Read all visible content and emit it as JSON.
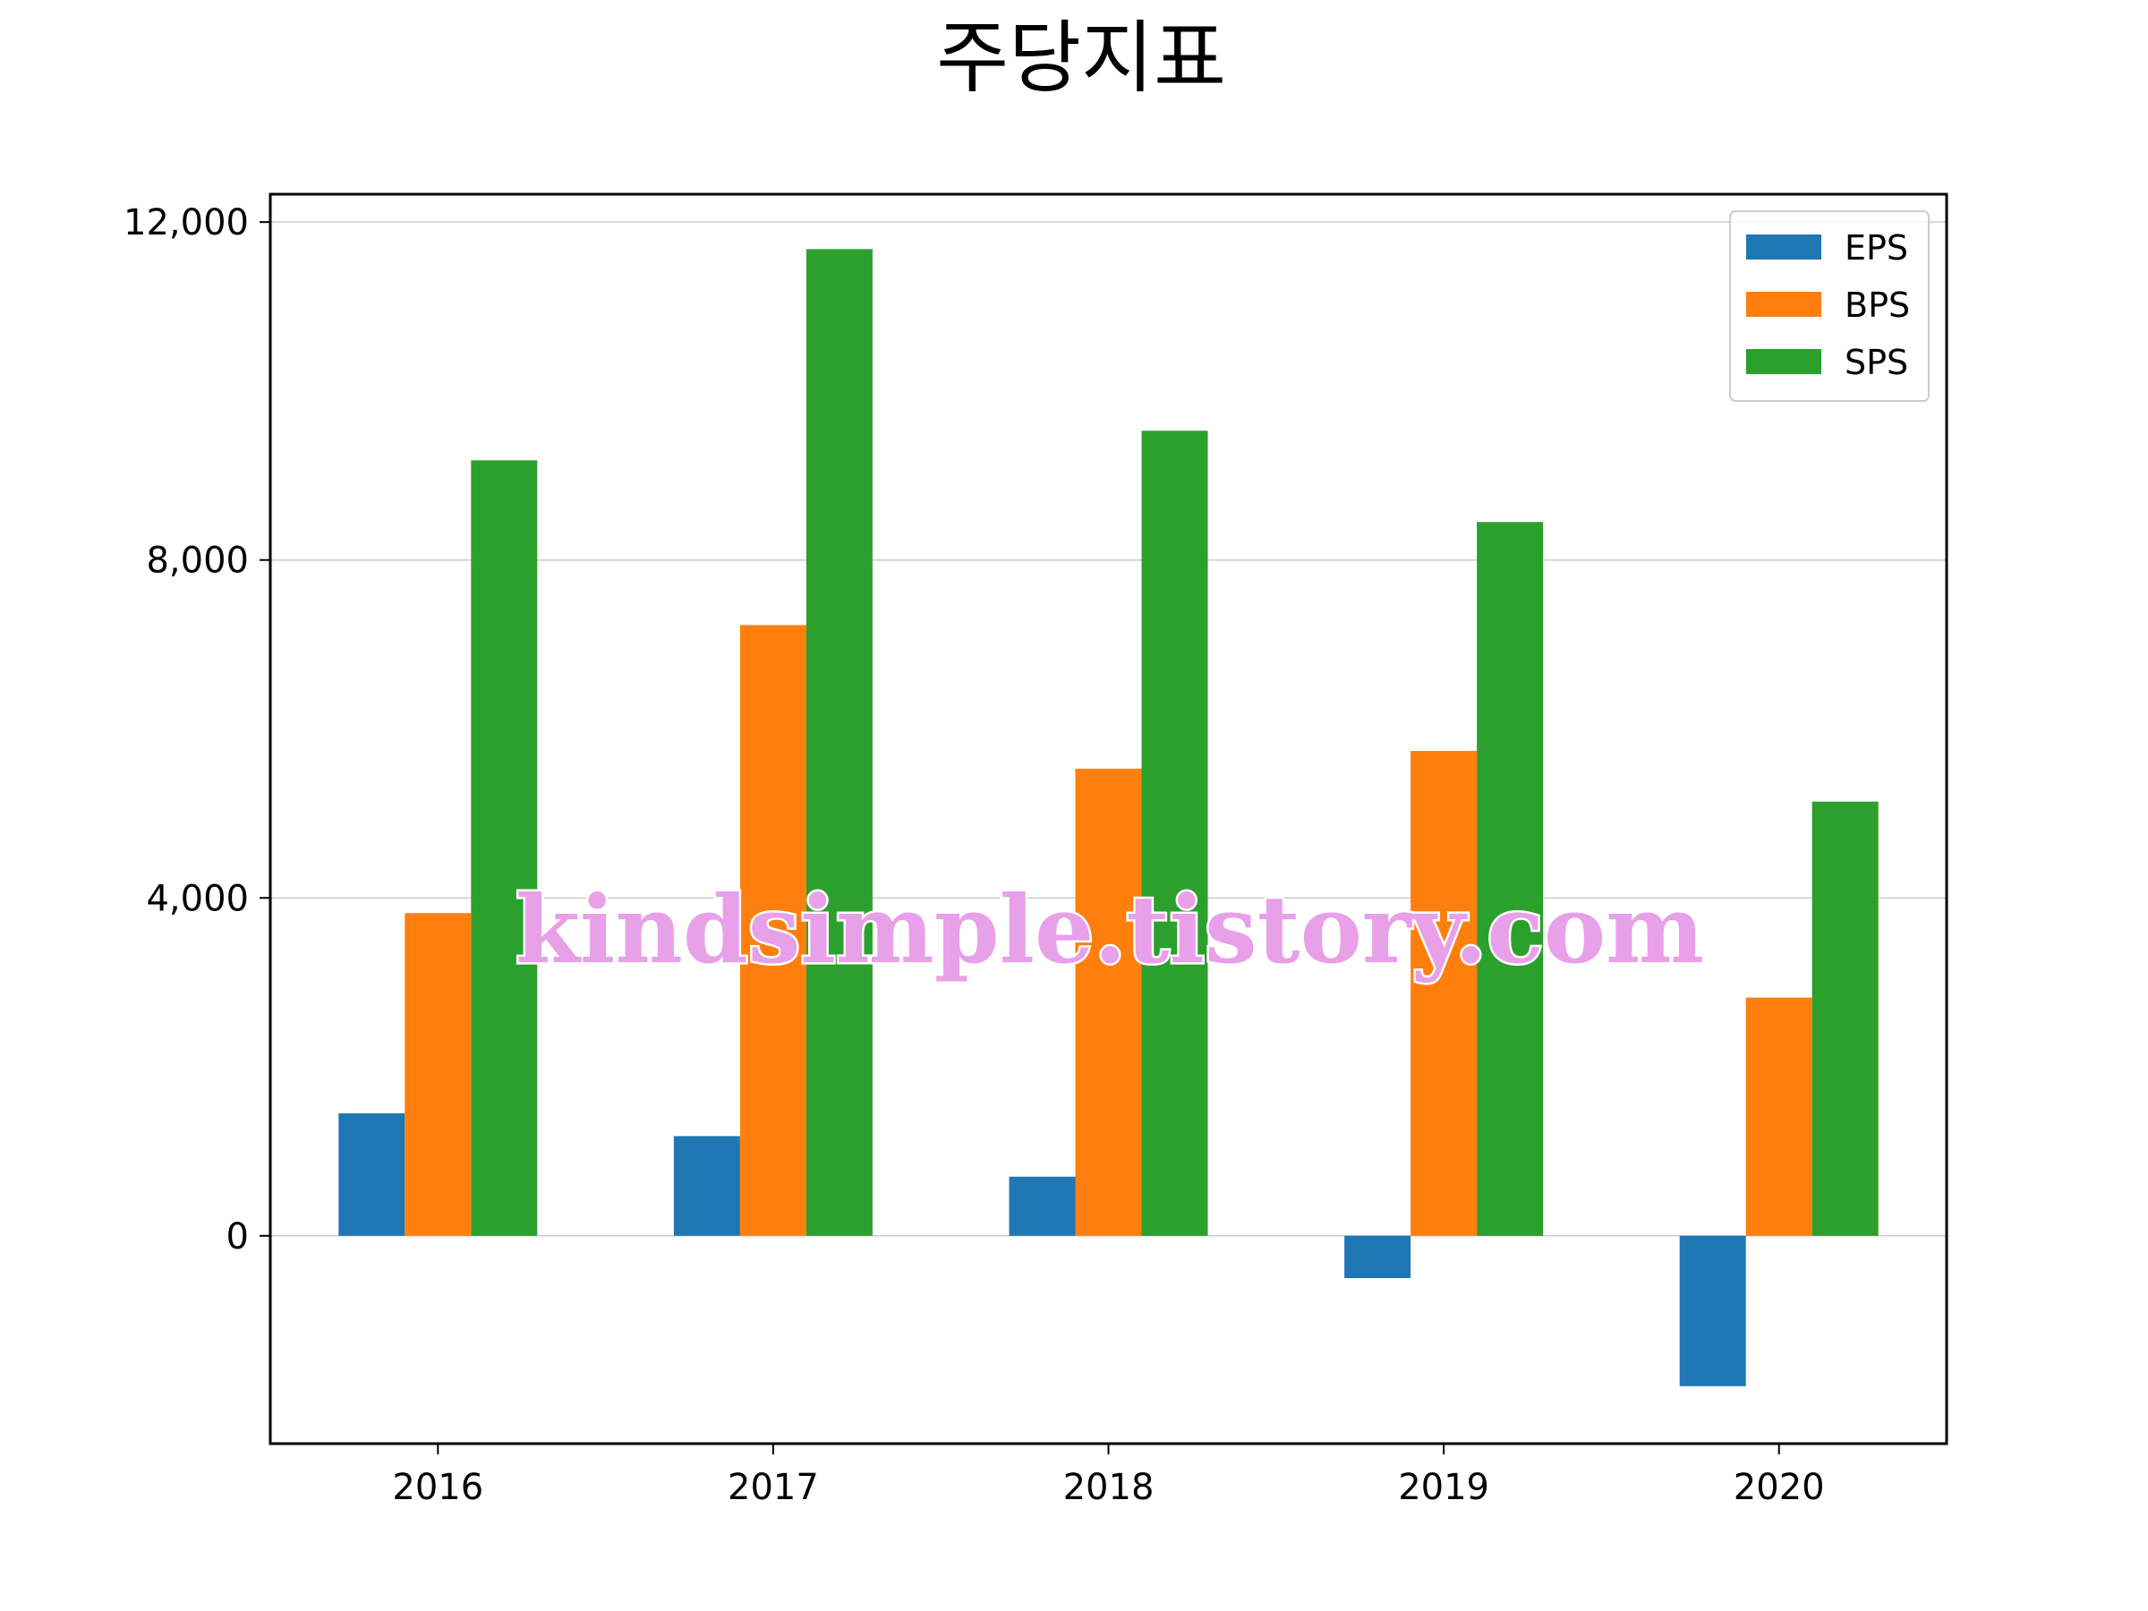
{
  "chart_data": {
    "type": "bar",
    "title": "주당지표",
    "xlabel": "",
    "ylabel": "",
    "categories": [
      "2016",
      "2017",
      "2018",
      "2019",
      "2020"
    ],
    "series": [
      {
        "name": "EPS",
        "color": "#1f77b4",
        "values": [
          1450,
          1180,
          700,
          -500,
          -1780
        ]
      },
      {
        "name": "BPS",
        "color": "#ff7f0e",
        "values": [
          3820,
          7230,
          5530,
          5740,
          2820
        ]
      },
      {
        "name": "SPS",
        "color": "#2ca02c",
        "values": [
          9180,
          11680,
          9530,
          8450,
          5140
        ]
      }
    ],
    "ylim": [
      -2460,
      12330
    ],
    "yticks": [
      0,
      4000,
      8000,
      12000
    ],
    "ytick_labels": [
      "0",
      "4,000",
      "8,000",
      "12,000"
    ],
    "grid": "horizontal",
    "legend": "top-right"
  },
  "watermark": "kindsimple.tistory.com"
}
